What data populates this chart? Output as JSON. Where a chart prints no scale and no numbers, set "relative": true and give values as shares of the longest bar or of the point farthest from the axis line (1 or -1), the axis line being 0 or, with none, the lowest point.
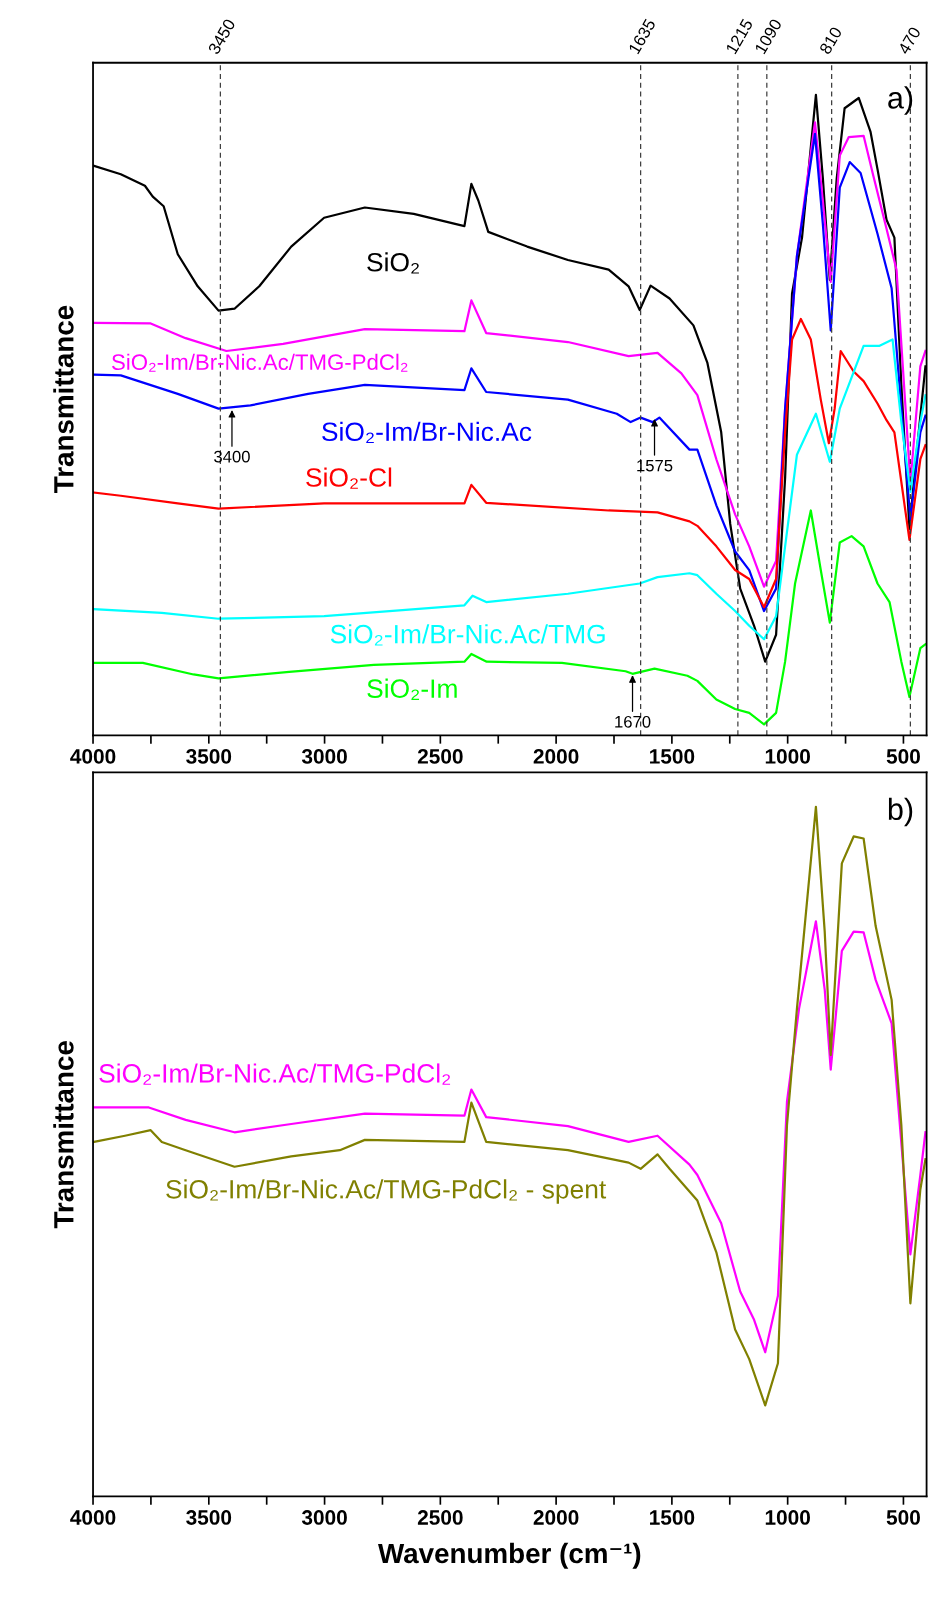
{
  "chart_data": [
    {
      "type": "line",
      "relative": true,
      "ylabel": "Transmittance",
      "xlim": [
        4000,
        400
      ],
      "xticks": [
        4000,
        {
          "value": 3750,
          "label": null
        },
        3500,
        {
          "value": 3250,
          "label": null
        },
        3000,
        {
          "value": 2750,
          "label": null
        },
        2500,
        {
          "value": 2250,
          "label": null
        },
        2000,
        {
          "value": 1750,
          "label": null
        },
        1500,
        {
          "value": 1250,
          "label": null
        },
        1000,
        {
          "value": 750,
          "label": null
        },
        500
      ],
      "legend": false,
      "grid": false,
      "line_style": "solid",
      "series": [
        {
          "name": "SiO₂",
          "color": "#000000",
          "x": [
            3996,
            3880,
            3776,
            3742,
            3695,
            3634,
            3548,
            3458,
            3389,
            3282,
            3144,
            3002,
            2826,
            2615,
            2396,
            2366,
            2336,
            2293,
            2125,
            1949,
            1773,
            1687,
            1639,
            1592,
            1510,
            1407,
            1347,
            1287,
            1248,
            1205,
            1145,
            1097,
            1050,
            1011,
            981,
            938,
            878,
            848,
            818,
            788,
            754,
            693,
            642,
            612,
            573,
            539,
            509,
            474,
            444,
            405
          ],
          "values": [
            0.889,
            0.876,
            0.858,
            0.841,
            0.826,
            0.751,
            0.701,
            0.663,
            0.666,
            0.701,
            0.763,
            0.808,
            0.824,
            0.814,
            0.795,
            0.861,
            0.835,
            0.786,
            0.763,
            0.742,
            0.727,
            0.701,
            0.664,
            0.702,
            0.682,
            0.64,
            0.582,
            0.473,
            0.33,
            0.229,
            0.171,
            0.115,
            0.157,
            0.402,
            0.69,
            0.777,
            1.0,
            0.87,
            0.711,
            0.87,
            0.979,
            0.995,
            0.942,
            0.884,
            0.805,
            0.777,
            0.547,
            0.322,
            0.438,
            0.576
          ]
        },
        {
          "name": "SiO₂-Im/Br-Nic.Ac/TMG-PdCl₂",
          "color": "#ff00ff",
          "x": [
            3996,
            3751,
            3600,
            3424,
            3179,
            2934,
            2826,
            2396,
            2366,
            2302,
            1949,
            1687,
            1562,
            1459,
            1390,
            1308,
            1227,
            1166,
            1102,
            1050,
            1011,
            960,
            882,
            848,
            814,
            775,
            736,
            672,
            633,
            573,
            530,
            470,
            427,
            405
          ],
          "values": [
            0.644,
            0.643,
            0.62,
            0.6,
            0.611,
            0.627,
            0.634,
            0.631,
            0.679,
            0.628,
            0.614,
            0.592,
            0.597,
            0.565,
            0.531,
            0.431,
            0.345,
            0.295,
            0.232,
            0.272,
            0.51,
            0.748,
            0.957,
            0.834,
            0.708,
            0.905,
            0.934,
            0.936,
            0.878,
            0.791,
            0.727,
            0.395,
            0.576,
            0.6
          ]
        },
        {
          "name": "SiO₂-Im/Br-Nic.Ac",
          "color": "#0000ff",
          "x": [
            3996,
            3880,
            3634,
            3458,
            3320,
            3071,
            2826,
            2396,
            2366,
            2302,
            1949,
            1738,
            1678,
            1635,
            1583,
            1554,
            1424,
            1390,
            1308,
            1227,
            1166,
            1102,
            1050,
            1011,
            960,
            882,
            848,
            814,
            775,
            732,
            685,
            612,
            551,
            470,
            427,
            405
          ],
          "values": [
            0.563,
            0.562,
            0.533,
            0.51,
            0.515,
            0.533,
            0.547,
            0.539,
            0.573,
            0.536,
            0.524,
            0.502,
            0.489,
            0.496,
            0.489,
            0.496,
            0.446,
            0.446,
            0.359,
            0.287,
            0.258,
            0.194,
            0.229,
            0.51,
            0.748,
            0.939,
            0.798,
            0.632,
            0.855,
            0.895,
            0.878,
            0.783,
            0.698,
            0.337,
            0.473,
            0.499
          ]
        },
        {
          "name": "SiO₂-Cl",
          "color": "#ff0000",
          "x": [
            3996,
            3880,
            3634,
            3458,
            3002,
            2396,
            2366,
            2302,
            1773,
            1562,
            1424,
            1390,
            1308,
            1227,
            1166,
            1102,
            1050,
            1011,
            981,
            943,
            900,
            857,
            822,
            797,
            771,
            715,
            672,
            612,
            573,
            539,
            474,
            427,
            405
          ],
          "values": [
            0.379,
            0.374,
            0.362,
            0.354,
            0.362,
            0.362,
            0.391,
            0.363,
            0.351,
            0.348,
            0.334,
            0.327,
            0.295,
            0.258,
            0.244,
            0.2,
            0.244,
            0.473,
            0.618,
            0.65,
            0.618,
            0.524,
            0.456,
            0.51,
            0.6,
            0.568,
            0.553,
            0.518,
            0.492,
            0.473,
            0.305,
            0.431,
            0.453
          ]
        },
        {
          "name": "SiO₂-Im/Br-Nic.Ac/TMG",
          "color": "#00ffff",
          "x": [
            3996,
            3703,
            3458,
            3002,
            2396,
            2361,
            2302,
            1949,
            1639,
            1562,
            1424,
            1390,
            1308,
            1227,
            1166,
            1102,
            1050,
            1011,
            960,
            878,
            818,
            775,
            672,
            603,
            547,
            509,
            470,
            427,
            405
          ],
          "values": [
            0.197,
            0.191,
            0.182,
            0.186,
            0.203,
            0.218,
            0.208,
            0.221,
            0.237,
            0.247,
            0.253,
            0.25,
            0.221,
            0.194,
            0.171,
            0.15,
            0.186,
            0.295,
            0.438,
            0.502,
            0.427,
            0.51,
            0.608,
            0.608,
            0.618,
            0.489,
            0.38,
            0.489,
            0.531
          ]
        },
        {
          "name": "SiO₂-Im",
          "color": "#00ff00",
          "x": [
            3996,
            3785,
            3566,
            3458,
            3153,
            2787,
            2396,
            2366,
            2300,
            1975,
            1700,
            1670,
            1575,
            1433,
            1390,
            1308,
            1227,
            1166,
            1102,
            1050,
            1011,
            968,
            900,
            857,
            818,
            775,
            724,
            672,
            612,
            560,
            509,
            474,
            427,
            405
          ],
          "values": [
            0.113,
            0.113,
            0.095,
            0.089,
            0.099,
            0.11,
            0.115,
            0.127,
            0.115,
            0.113,
            0.1,
            0.096,
            0.104,
            0.093,
            0.085,
            0.056,
            0.041,
            0.035,
            0.017,
            0.035,
            0.115,
            0.237,
            0.351,
            0.258,
            0.176,
            0.301,
            0.311,
            0.295,
            0.237,
            0.208,
            0.115,
            0.06,
            0.136,
            0.142
          ]
        }
      ],
      "ref_lines": [
        {
          "axis": "x",
          "value": 3450,
          "label": "3450",
          "color": "#404040",
          "line_style": "dashed"
        },
        {
          "axis": "x",
          "value": 1635,
          "label": "1635",
          "color": "#404040",
          "line_style": "dashed"
        },
        {
          "axis": "x",
          "value": 1215,
          "label": "1215",
          "color": "#404040",
          "line_style": "dashed"
        },
        {
          "axis": "x",
          "value": 1090,
          "label": "1090",
          "color": "#404040",
          "line_style": "dashed"
        },
        {
          "axis": "x",
          "value": 810,
          "label": "810",
          "color": "#404040",
          "line_style": "dashed"
        },
        {
          "axis": "x",
          "value": 470,
          "label": "470",
          "color": "#404040",
          "line_style": "dashed"
        }
      ],
      "annotations": [
        "a)",
        {
          "text": "3400",
          "x": 3400,
          "y": 0.51
        },
        {
          "text": "1575",
          "x": 1575,
          "y": 0.496
        },
        {
          "text": "1670",
          "x": 1670,
          "y": 0.096
        }
      ]
    },
    {
      "type": "line",
      "relative": true,
      "ylabel": "Transmittance",
      "xlabel": "Wavenumber (cm⁻¹)",
      "xlim": [
        4000,
        400
      ],
      "xticks": [
        4000,
        {
          "value": 3750,
          "label": null
        },
        3500,
        {
          "value": 3250,
          "label": null
        },
        3000,
        {
          "value": 2750,
          "label": null
        },
        2500,
        {
          "value": 2250,
          "label": null
        },
        2000,
        {
          "value": 1750,
          "label": null
        },
        1500,
        {
          "value": 1250,
          "label": null
        },
        1000,
        {
          "value": 750,
          "label": null
        },
        500
      ],
      "legend": false,
      "grid": false,
      "line_style": "solid",
      "series": [
        {
          "name": "SiO₂-Im/Br-Nic.Ac/TMG-PdCl₂",
          "color": "#ff00ff",
          "x": [
            3996,
            3759,
            3600,
            3389,
            3144,
            2826,
            2396,
            2366,
            2302,
            1949,
            1687,
            1562,
            1424,
            1390,
            1287,
            1205,
            1145,
            1097,
            1042,
            1003,
            951,
            878,
            840,
            814,
            766,
            715,
            672,
            620,
            551,
            470,
            427,
            405
          ],
          "values": [
            0.564,
            0.564,
            0.546,
            0.528,
            0.54,
            0.555,
            0.552,
            0.59,
            0.55,
            0.537,
            0.514,
            0.523,
            0.481,
            0.466,
            0.396,
            0.297,
            0.256,
            0.209,
            0.291,
            0.572,
            0.707,
            0.834,
            0.735,
            0.619,
            0.791,
            0.819,
            0.818,
            0.749,
            0.686,
            0.351,
            0.466,
            0.528
          ]
        },
        {
          "name": "SiO₂-Im/Br-Nic.Ac/TMG-PdCl₂ - spent",
          "color": "#808000",
          "x": [
            3996,
            3862,
            3751,
            3703,
            3600,
            3389,
            3144,
            2934,
            2826,
            2396,
            2366,
            2302,
            1949,
            1687,
            1635,
            1562,
            1510,
            1390,
            1308,
            1227,
            1166,
            1097,
            1042,
            1003,
            960,
            878,
            840,
            814,
            766,
            715,
            672,
            620,
            551,
            509,
            470,
            427,
            405
          ],
          "values": [
            0.514,
            0.523,
            0.531,
            0.514,
            0.502,
            0.478,
            0.493,
            0.502,
            0.517,
            0.514,
            0.571,
            0.514,
            0.502,
            0.484,
            0.475,
            0.496,
            0.475,
            0.429,
            0.354,
            0.242,
            0.199,
            0.132,
            0.193,
            0.538,
            0.707,
            1.0,
            0.819,
            0.64,
            0.918,
            0.957,
            0.954,
            0.827,
            0.72,
            0.538,
            0.28,
            0.445,
            0.489
          ]
        }
      ],
      "annotations": [
        "b)"
      ]
    }
  ]
}
